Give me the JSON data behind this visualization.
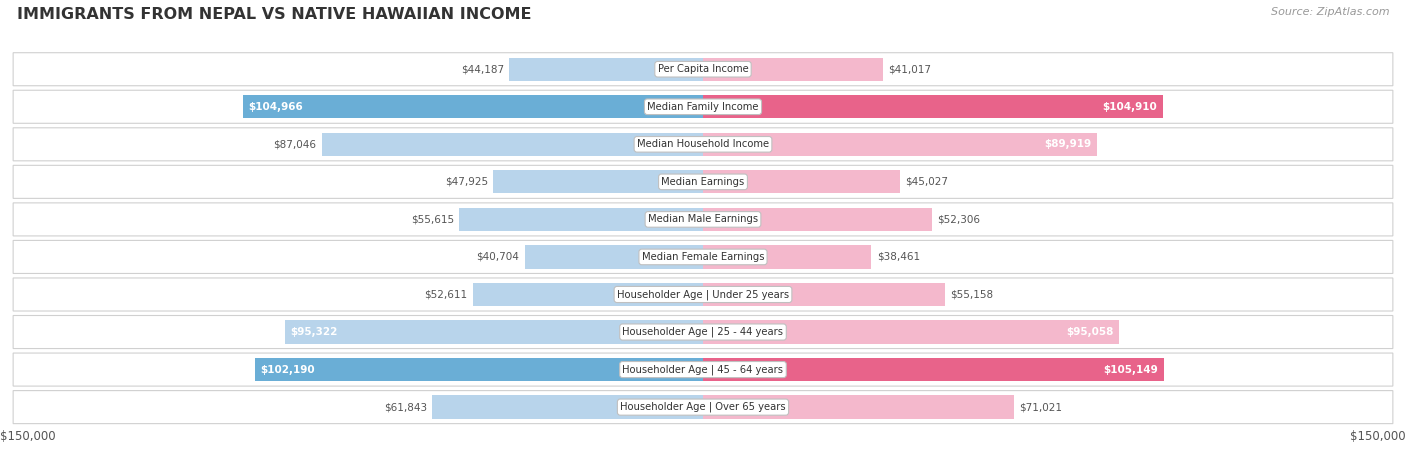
{
  "title": "IMMIGRANTS FROM NEPAL VS NATIVE HAWAIIAN INCOME",
  "source": "Source: ZipAtlas.com",
  "categories": [
    "Per Capita Income",
    "Median Family Income",
    "Median Household Income",
    "Median Earnings",
    "Median Male Earnings",
    "Median Female Earnings",
    "Householder Age | Under 25 years",
    "Householder Age | 25 - 44 years",
    "Householder Age | 45 - 64 years",
    "Householder Age | Over 65 years"
  ],
  "nepal_values": [
    44187,
    104966,
    87046,
    47925,
    55615,
    40704,
    52611,
    95322,
    102190,
    61843
  ],
  "hawaiian_values": [
    41017,
    104910,
    89919,
    45027,
    52306,
    38461,
    55158,
    95058,
    105149,
    71021
  ],
  "nepal_labels": [
    "$44,187",
    "$104,966",
    "$87,046",
    "$47,925",
    "$55,615",
    "$40,704",
    "$52,611",
    "$95,322",
    "$102,190",
    "$61,843"
  ],
  "hawaiian_labels": [
    "$41,017",
    "$104,910",
    "$89,919",
    "$45,027",
    "$52,306",
    "$38,461",
    "$55,158",
    "$95,058",
    "$105,149",
    "$71,021"
  ],
  "nepal_color_light": "#b8d4eb",
  "nepal_color_dark": "#6aaed6",
  "hawaiian_color_light": "#f4b8cc",
  "hawaiian_color_dark": "#e8638a",
  "max_value": 150000,
  "nepal_label_inside": [
    false,
    true,
    false,
    false,
    false,
    false,
    false,
    true,
    true,
    false
  ],
  "hawaiian_label_inside": [
    false,
    true,
    true,
    false,
    false,
    false,
    false,
    true,
    true,
    false
  ],
  "row_bg_color": "#f0f0f0",
  "row_border_color": "#d0d0d0",
  "label_color_inside": "#ffffff",
  "label_color_outside": "#555555"
}
